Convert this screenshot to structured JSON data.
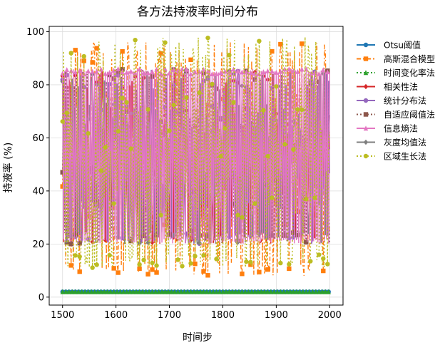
{
  "chart_data": {
    "type": "line",
    "title": "各方法持液率时间分布",
    "xlabel": "时间步",
    "ylabel": "持液率 (%)",
    "xlim": [
      1475,
      2025
    ],
    "ylim": [
      -3,
      102
    ],
    "xticks": [
      1500,
      1600,
      1700,
      1800,
      1900,
      2000
    ],
    "yticks": [
      0,
      20,
      40,
      60,
      80,
      100
    ],
    "grid": true,
    "legend_position": "right",
    "x_start": 1500,
    "x_end": 2000,
    "x_step": 2,
    "series": [
      {
        "name": "Otsu阈值",
        "color": "#1f77b4",
        "marker": "circle",
        "dash": "solid",
        "value_range": [
          1.5,
          2.5
        ],
        "mean": 2
      },
      {
        "name": "高斯混合模型",
        "color": "#ff7f0e",
        "marker": "square",
        "dash": "dashdot",
        "value_range": [
          8,
          96
        ],
        "mean": 40
      },
      {
        "name": "时间变化率法",
        "color": "#2ca02c",
        "marker": "triangle",
        "dash": "dotted",
        "value_range": [
          1.5,
          2.5
        ],
        "mean": 2
      },
      {
        "name": "相关性法",
        "color": "#d62728",
        "marker": "diamond",
        "dash": "solid",
        "value_range": [
          20,
          86
        ],
        "mean": 50
      },
      {
        "name": "统计分布法",
        "color": "#9467bd",
        "marker": "circle",
        "dash": "solid",
        "value_range": [
          20,
          86
        ],
        "mean": 50
      },
      {
        "name": "自适应阈值法",
        "color": "#8c564b",
        "marker": "square",
        "dash": "dotted",
        "value_range": [
          20,
          86
        ],
        "mean": 50
      },
      {
        "name": "信息熵法",
        "color": "#e377c2",
        "marker": "triangle",
        "dash": "solid",
        "value_range": [
          20,
          86
        ],
        "mean": 55
      },
      {
        "name": "灰度均值法",
        "color": "#7f7f7f",
        "marker": "diamond",
        "dash": "solid",
        "value_range": [
          20,
          86
        ],
        "mean": 50
      },
      {
        "name": "区域生长法",
        "color": "#bcbd22",
        "marker": "circle",
        "dash": "dotted",
        "value_range": [
          11,
          98
        ],
        "mean": 50
      }
    ]
  }
}
